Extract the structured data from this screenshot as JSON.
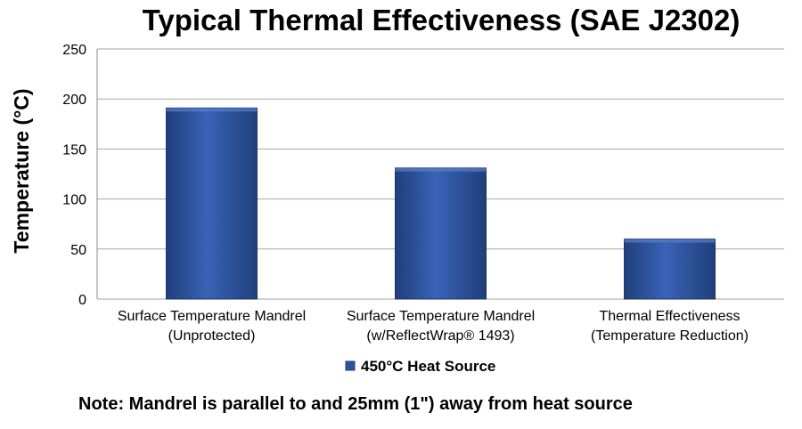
{
  "chart_data": {
    "type": "bar",
    "title": "Typical Thermal Effectiveness (SAE J2302)",
    "xlabel": "",
    "ylabel": "Temperature (°C)",
    "categories": [
      [
        "Surface Temperature Mandrel",
        "(Unprotected)"
      ],
      [
        "Surface Temperature Mandrel",
        "(w/ReflectWrap® 1493)"
      ],
      [
        "Thermal Effectiveness",
        "(Temperature Reduction)"
      ]
    ],
    "series": [
      {
        "name": "450°C Heat Source",
        "values": [
          191,
          131,
          60
        ]
      }
    ],
    "ylim": [
      0,
      250
    ],
    "yticks": [
      0,
      50,
      100,
      150,
      200,
      250
    ],
    "grid": true,
    "legend": "bottom-center",
    "note": "Note: Mandrel is parallel to and 25mm (1\") away from heat source",
    "colors": {
      "bar_dark": "#1f3f7a",
      "bar_mid": "#3a63b8",
      "bar_light": "#2d52a0",
      "grid": "#a6a6a6",
      "axis": "#888888"
    }
  }
}
